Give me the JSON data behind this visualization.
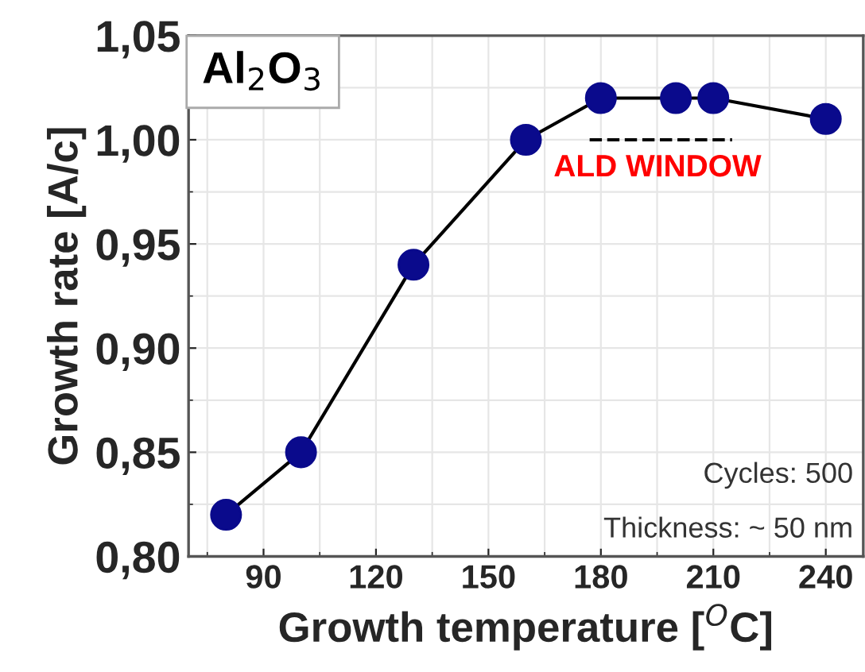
{
  "chart_data": {
    "type": "line",
    "xlabel": "Growth temperature [$^{O}$C]",
    "ylabel": "Growth rate [A/c]",
    "series": [
      {
        "color": "#0a0a8c",
        "marker": "circle",
        "line_style": "solid",
        "x": [
          80,
          100,
          130,
          160,
          180,
          200,
          210,
          240
        ],
        "values": [
          0.82,
          0.85,
          0.94,
          1.0,
          1.02,
          1.02,
          1.02,
          1.01
        ]
      },
      {
        "type": "line",
        "color": "#000000",
        "marker": "none",
        "line_style": "dashed",
        "x": [
          177,
          215
        ],
        "values": [
          1.0,
          1.0
        ]
      }
    ],
    "annotations": [
      "Al$_{2}$O$_{3}$",
      "ALD WINDOW",
      "Cycles: 500",
      "Thickness: ~ 50 nm"
    ],
    "xlim": [
      70,
      250
    ],
    "ylim": [
      0.8,
      1.05
    ],
    "xticks": [
      90,
      120,
      150,
      180,
      210,
      240
    ],
    "yticks": [
      {
        "value": 0.8,
        "label": "0,80"
      },
      {
        "value": 0.85,
        "label": "0,85"
      },
      {
        "value": 0.9,
        "label": "0,90"
      },
      {
        "value": 0.95,
        "label": "0,95"
      },
      {
        "value": 1.0,
        "label": "1,00"
      },
      {
        "value": 1.05,
        "label": "1,05"
      }
    ],
    "grid": true,
    "legend": false
  }
}
